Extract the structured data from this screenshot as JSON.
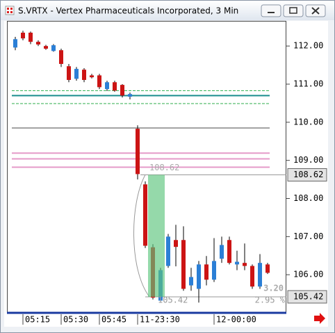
{
  "chart_data": {
    "type": "candlestick",
    "title": "S.VRTX - Vertex Pharmaceuticals Incorporated, 3 Min",
    "categories": [
      null,
      "05:15",
      null,
      null,
      null,
      null,
      "05:30",
      null,
      null,
      null,
      null,
      "05:45",
      null,
      null,
      null,
      null,
      "11-23:30",
      null,
      null,
      null,
      null,
      null,
      null,
      null,
      null,
      null,
      "12-00:00",
      null,
      null,
      null,
      null,
      null,
      null,
      null
    ],
    "open": [
      111.96,
      112.35,
      112.35,
      112.11,
      112.0,
      111.87,
      111.89,
      111.47,
      111.14,
      111.38,
      111.23,
      111.23,
      110.87,
      111.05,
      110.98,
      110.67,
      109.83,
      108.37,
      106.72,
      105.32,
      106.23,
      106.91,
      106.91,
      105.72,
      105.63,
      106.27,
      105.87,
      106.42,
      106.91,
      106.27,
      106.31,
      106.23,
      105.69,
      106.27
    ],
    "high": [
      112.24,
      112.4,
      112.38,
      112.15,
      112.03,
      112.05,
      111.93,
      111.53,
      111.45,
      111.42,
      111.27,
      111.27,
      111.09,
      111.09,
      111.0,
      110.78,
      109.92,
      108.45,
      106.8,
      106.18,
      107.07,
      107.31,
      107.27,
      106.18,
      106.36,
      106.49,
      106.96,
      107.0,
      107.0,
      106.63,
      106.82,
      106.27,
      106.54,
      106.31
    ],
    "low": [
      111.89,
      112.15,
      112.05,
      112.0,
      111.9,
      111.85,
      111.45,
      111.05,
      111.09,
      111.05,
      111.15,
      110.87,
      110.82,
      110.8,
      110.65,
      110.6,
      108.5,
      106.7,
      105.35,
      105.27,
      106.18,
      106.22,
      105.58,
      105.58,
      105.27,
      105.72,
      105.81,
      106.31,
      106.27,
      106.12,
      106.12,
      105.63,
      105.63,
      106.02
    ],
    "close": [
      112.18,
      112.2,
      112.11,
      112.04,
      111.93,
      112.02,
      111.53,
      111.11,
      111.4,
      111.11,
      111.18,
      110.92,
      111.05,
      110.83,
      110.7,
      110.74,
      108.64,
      106.76,
      105.4,
      106.12,
      107.0,
      106.73,
      105.63,
      105.94,
      106.27,
      105.87,
      106.36,
      106.78,
      106.31,
      106.34,
      106.23,
      105.69,
      106.31,
      106.05
    ],
    "up_color": "#2b7fd6",
    "down_color": "#cc1414",
    "ylim": [
      105.0,
      112.66
    ],
    "yticks": [
      {
        "value": 106,
        "label": "106.00"
      },
      {
        "value": 107,
        "label": "107.00"
      },
      {
        "value": 108,
        "label": "108.00"
      },
      {
        "value": 109,
        "label": "109.00"
      },
      {
        "value": 110,
        "label": "110.00"
      },
      {
        "value": 111,
        "label": "111.00"
      },
      {
        "value": 112,
        "label": "112.00"
      }
    ],
    "levels": [
      {
        "value": 110.83,
        "color": "#2fae4e",
        "dash": true
      },
      {
        "value": 110.7,
        "color": "#178c8c",
        "dash": false
      },
      {
        "value": 110.49,
        "color": "#2fae4e",
        "dash": true
      },
      {
        "value": 109.85,
        "color": "#a0a0a0",
        "dash": false
      },
      {
        "value": 109.19,
        "color": "#e59ac8",
        "dash": false
      },
      {
        "value": 109.04,
        "color": "#e59ac8",
        "dash": false
      },
      {
        "value": 108.82,
        "color": "#e59ac8",
        "dash": false
      }
    ],
    "measure": {
      "high": {
        "value": 108.62,
        "label": "108.62"
      },
      "low": {
        "value": 105.42,
        "label": "105.42"
      },
      "change": {
        "value": 3.2,
        "label": "3.20"
      },
      "percent": {
        "value": 2.95,
        "label": "2.95 %"
      },
      "color": "#5cc47c"
    }
  }
}
